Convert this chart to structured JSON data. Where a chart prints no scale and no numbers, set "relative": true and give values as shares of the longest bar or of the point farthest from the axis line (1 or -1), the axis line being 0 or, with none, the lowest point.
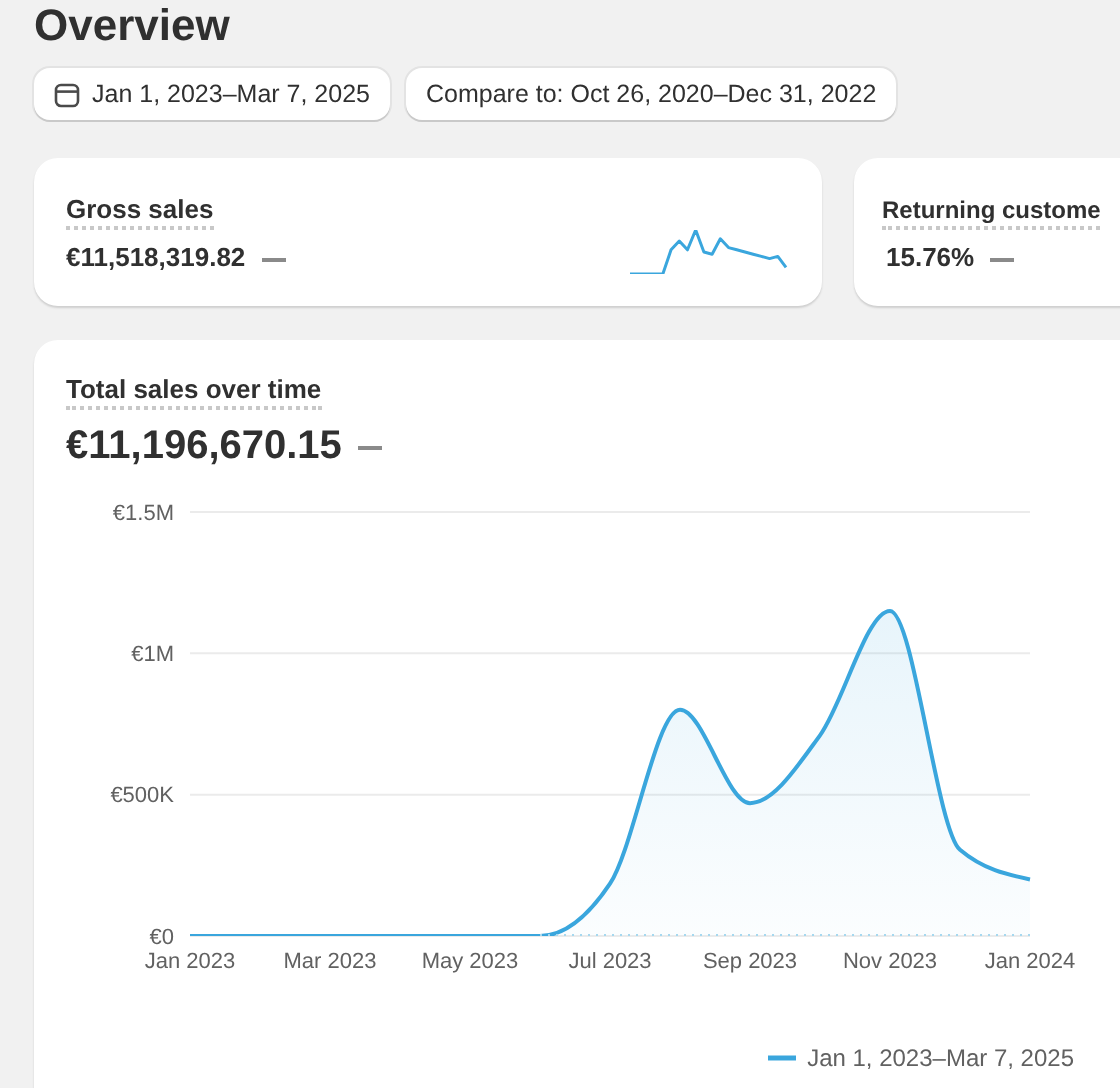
{
  "chart_data": [
    {
      "type": "other",
      "title": "Overview",
      "annotations": [
        "Jan 1, 2023–Mar 7, 2025",
        "Compare to: Oct 26, 2020–Dec 31, 2022"
      ]
    },
    {
      "type": "other",
      "title": "Gross sales",
      "subtitle": "€11,518,319.82"
    },
    {
      "type": "line",
      "relative": true,
      "categories": [
        null,
        null,
        null,
        null,
        null,
        null,
        null,
        null,
        null,
        null,
        null,
        null,
        null,
        null,
        null,
        null,
        null,
        null,
        null,
        null
      ],
      "series": [
        {
          "color": "#3aa6dd",
          "values": [
            0,
            0,
            0,
            0,
            0,
            0.55,
            0.75,
            0.55,
            1,
            0.5,
            0.45,
            0.8,
            0.6,
            0.55,
            0.5,
            0.45,
            0.4,
            0.35,
            0.4,
            0.15
          ]
        }
      ]
    },
    {
      "type": "other",
      "title": "Returning custome",
      "subtitle": "15.76%"
    },
    {
      "type": "area",
      "title": "Total sales over time",
      "subtitle": "€11,196,670.15",
      "categories": [
        "Jan 2023",
        null,
        "Mar 2023",
        null,
        "May 2023",
        null,
        "Jul 2023",
        null,
        "Sep 2023",
        null,
        "Nov 2023",
        null,
        "Jan 2024"
      ],
      "series": [
        {
          "name": "Jan 1, 2023–Mar 7, 2025",
          "color": "#3aa6dd",
          "values": [
            0,
            0,
            0,
            0,
            0,
            0,
            185000,
            800000,
            470000,
            710000,
            1150000,
            305000,
            200000
          ]
        },
        {
          "type": "line",
          "line_style": "dotted",
          "color": "#a6d8ef",
          "values": [
            null,
            null,
            null,
            null,
            null,
            0,
            0,
            0,
            0,
            0,
            0,
            0,
            0
          ]
        }
      ],
      "ylim": [
        0,
        1500000
      ],
      "yticks": [
        {
          "value": 0,
          "label": "€0"
        },
        {
          "value": 500000,
          "label": "€500K"
        },
        {
          "value": 1000000,
          "label": "€1M"
        },
        {
          "value": 1500000,
          "label": "€1.5M"
        }
      ],
      "grid": "y",
      "legend": "bottom right"
    }
  ]
}
